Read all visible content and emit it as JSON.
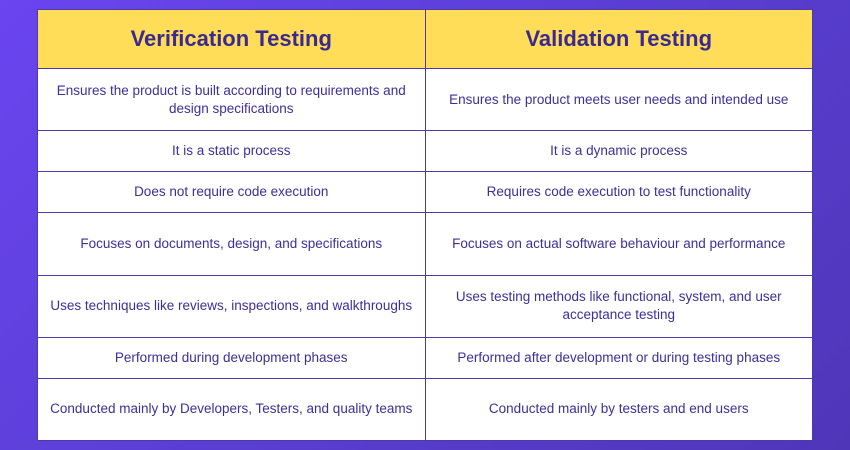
{
  "table": {
    "headers": [
      "Verification Testing",
      "Validation Testing"
    ],
    "rows": [
      [
        "Ensures the product is built according to requirements and design specifications",
        "Ensures the product meets user needs and intended use"
      ],
      [
        "It is a static process",
        "It is a dynamic process"
      ],
      [
        "Does not require code execution",
        "Requires code execution to test functionality"
      ],
      [
        "Focuses on documents, design, and specifications",
        "Focuses on actual software behaviour and performance"
      ],
      [
        "Uses techniques like reviews, inspections, and walkthroughs",
        "Uses testing methods like functional, system, and user acceptance testing"
      ],
      [
        "Performed during development phases",
        "Performed after development or during testing phases"
      ],
      [
        "Conducted mainly by Developers, Testers, and quality teams",
        "Conducted mainly by testers and end users"
      ]
    ]
  },
  "colors": {
    "background": "#5b3fd6",
    "header_fill": "#ffdd59",
    "text": "#3c2f9a",
    "border": "#4b3aa8"
  }
}
